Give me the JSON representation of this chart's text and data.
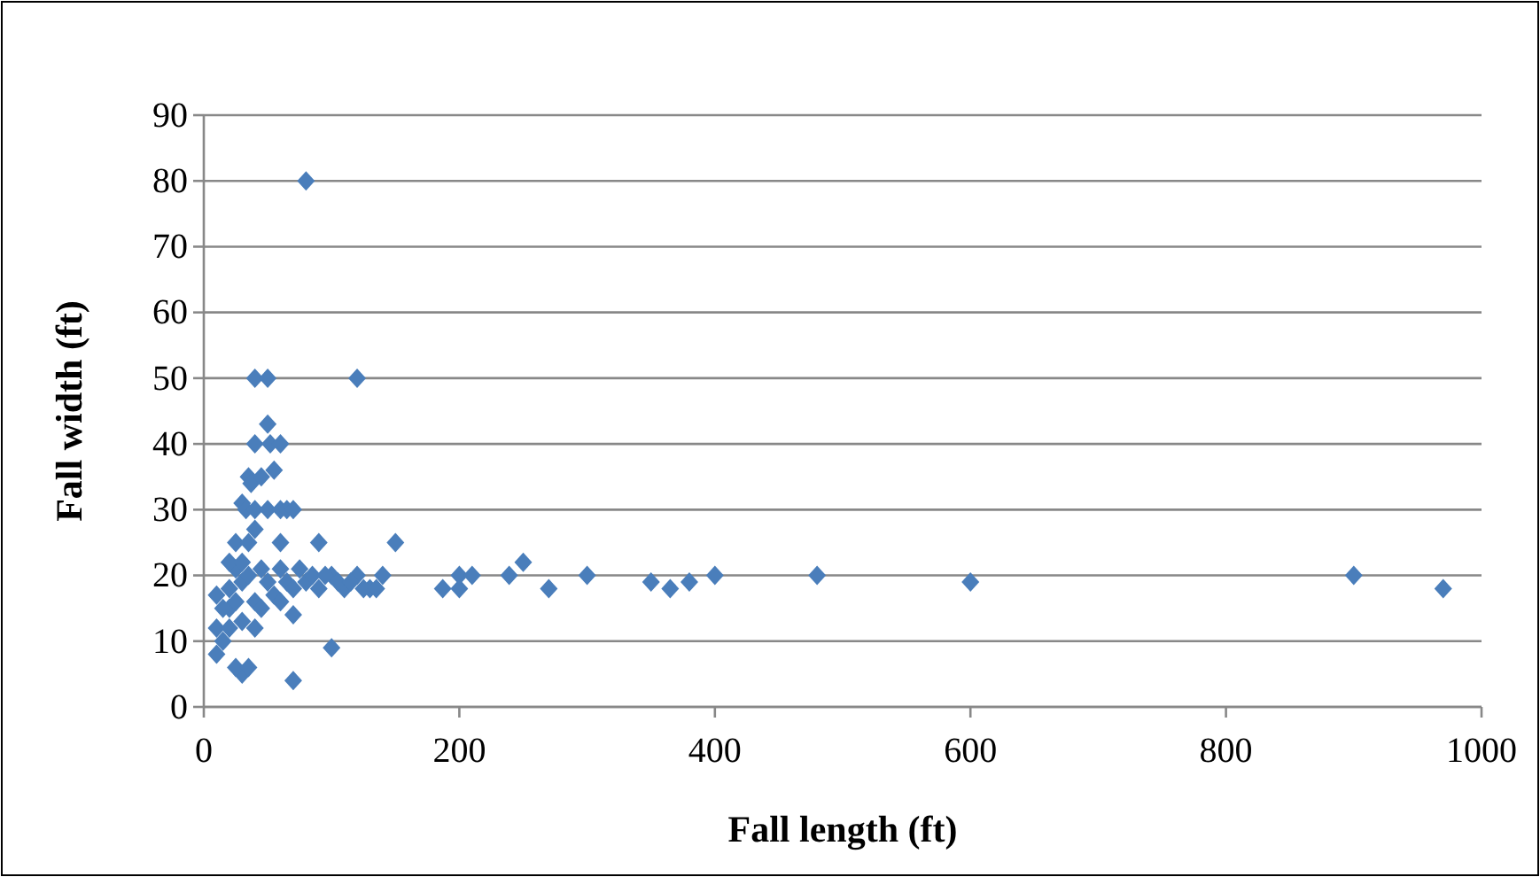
{
  "chart_data": {
    "type": "scatter",
    "xlabel": "Fall length (ft)",
    "ylabel": "Fall width (ft)",
    "xlim": [
      0,
      1000
    ],
    "xticks": [
      0,
      200,
      400,
      600,
      800,
      1000
    ],
    "ylim": [
      0,
      90
    ],
    "yticks": [
      0,
      10,
      20,
      30,
      40,
      50,
      60,
      70,
      80,
      90
    ],
    "grid": "y",
    "marker": "diamond",
    "series": [
      {
        "color": "#4a7ebb",
        "x": [
          80,
          40,
          50,
          120,
          50,
          40,
          52,
          60,
          55,
          35,
          37,
          45,
          30,
          33,
          40,
          50,
          60,
          65,
          70,
          40,
          60,
          90,
          150,
          250,
          300,
          270,
          350,
          365,
          380,
          400,
          480,
          600,
          900,
          970,
          187,
          200,
          200,
          210,
          239,
          70,
          100,
          30,
          25,
          35,
          10,
          10,
          15,
          20,
          20,
          15,
          10,
          20,
          25,
          30,
          30,
          25,
          20,
          30,
          25,
          35,
          35,
          40,
          45,
          45,
          50,
          55,
          60,
          65,
          70,
          70,
          75,
          80,
          90,
          100,
          110,
          120,
          130,
          140,
          60,
          40,
          85,
          95,
          105,
          115,
          125,
          135
        ],
        "values": [
          80,
          50,
          50,
          50,
          43,
          40,
          40,
          40,
          36,
          35,
          34,
          35,
          31,
          30,
          30,
          30,
          30,
          30,
          30,
          27,
          25,
          25,
          25,
          22,
          20,
          18,
          19,
          18,
          19,
          20,
          20,
          19,
          20,
          18,
          18,
          18,
          20,
          20,
          20,
          4,
          9,
          5,
          6,
          6,
          8,
          12,
          10,
          12,
          15,
          15,
          17,
          18,
          16,
          13,
          19,
          21,
          22,
          22,
          25,
          25,
          20,
          16,
          21,
          15,
          19,
          17,
          21,
          19,
          14,
          18,
          21,
          19,
          18,
          20,
          18,
          20,
          18,
          20,
          16,
          12,
          20,
          20,
          19,
          19,
          18,
          18
        ]
      }
    ]
  }
}
